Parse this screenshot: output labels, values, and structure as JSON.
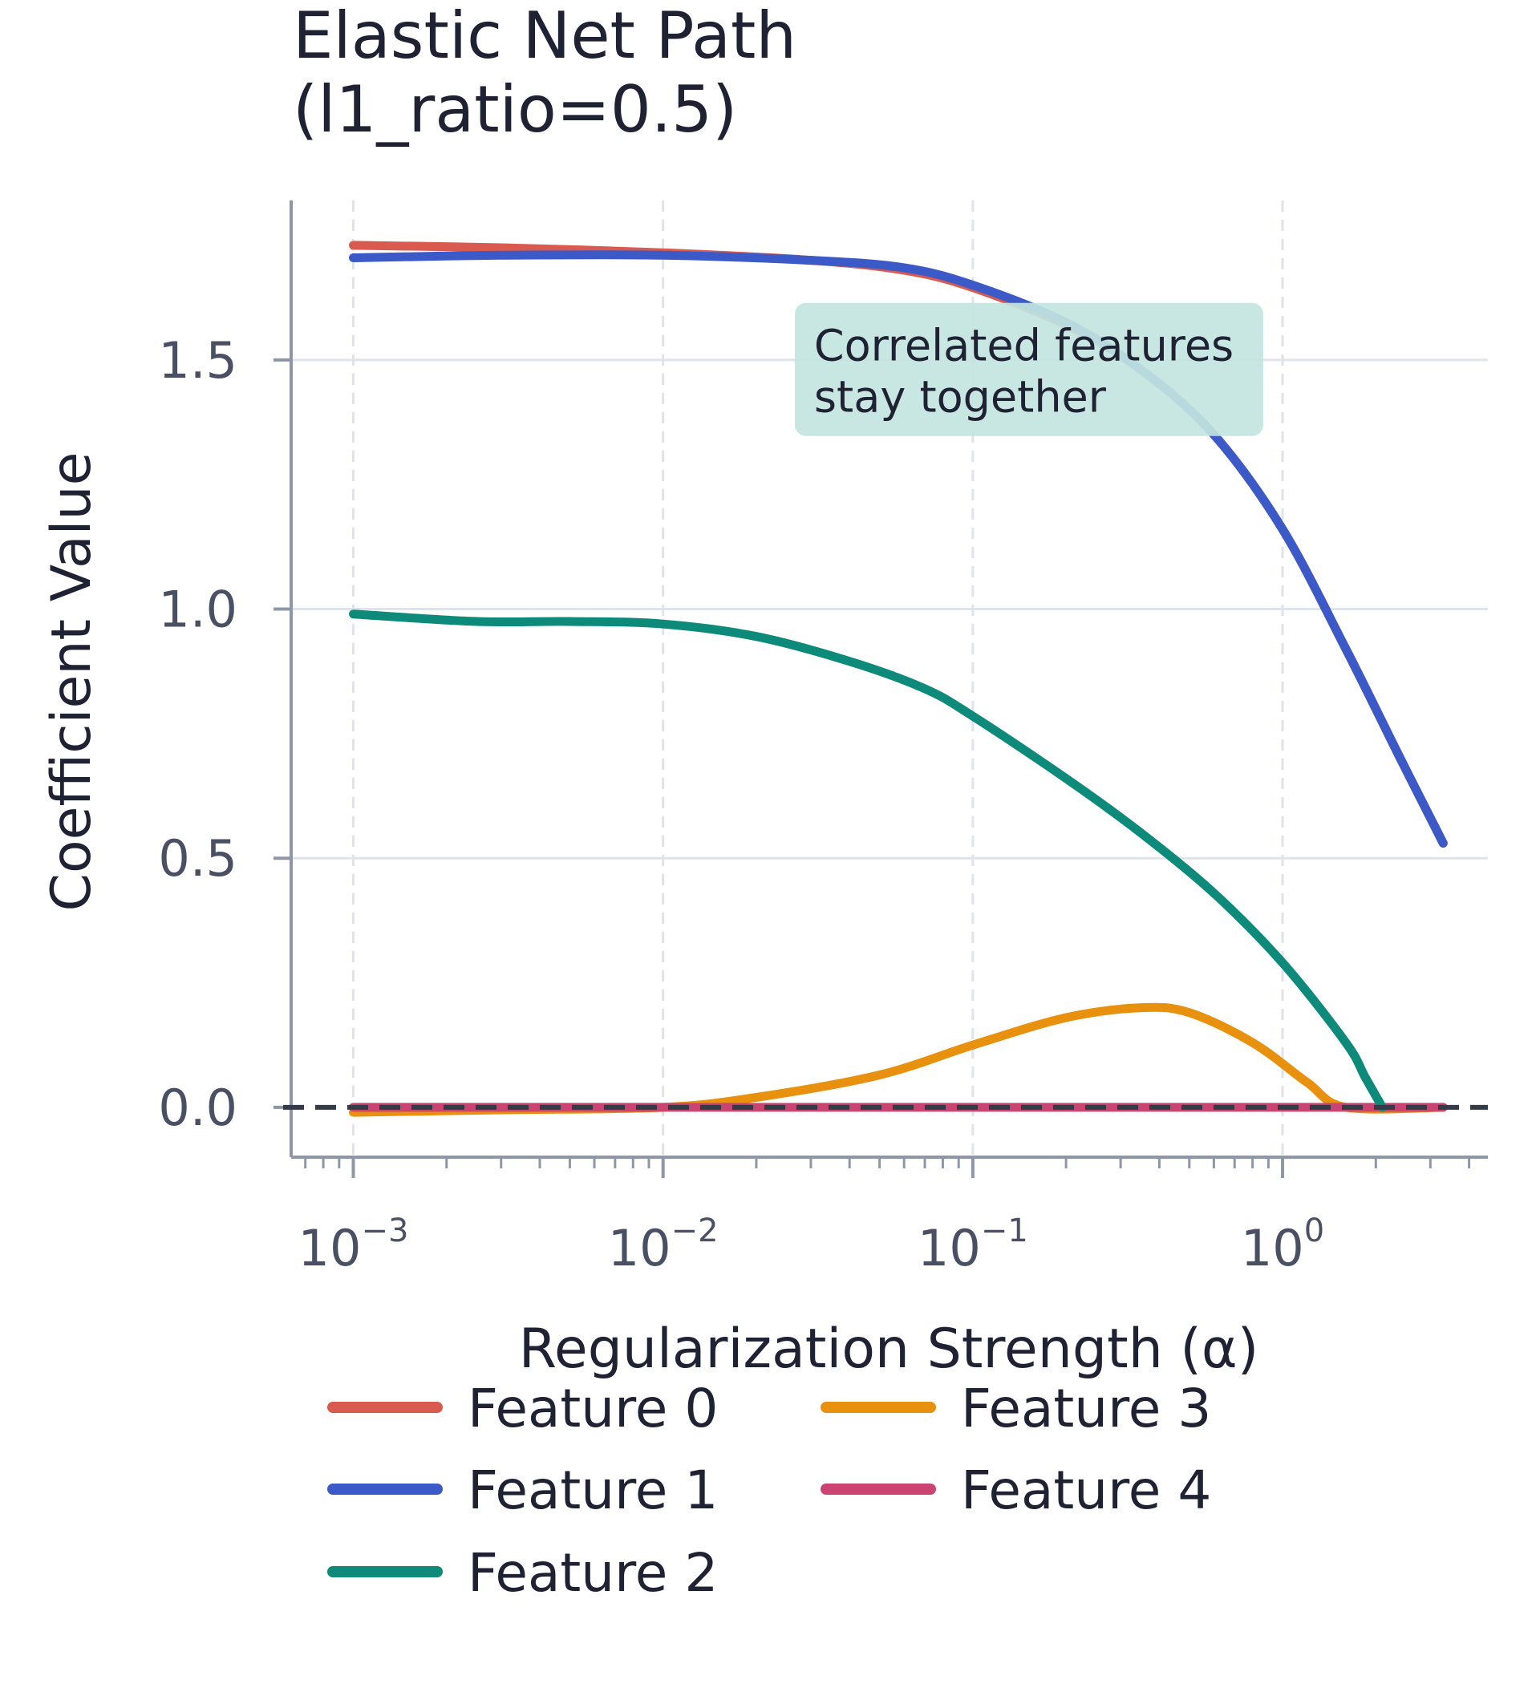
{
  "chart_data": {
    "type": "line",
    "title_lines": [
      "Elastic Net Path",
      "(l1_ratio=0.5)"
    ],
    "xlabel": "Regularization Strength (α)",
    "ylabel": "Coefficient Value",
    "x_scale": "log",
    "xlim": [
      0.00063,
      4.6
    ],
    "ylim": [
      -0.1,
      1.82
    ],
    "x_ticks": [
      {
        "value": 0.001,
        "base": "10",
        "exp": "−3"
      },
      {
        "value": 0.01,
        "base": "10",
        "exp": "−2"
      },
      {
        "value": 0.1,
        "base": "10",
        "exp": "−1"
      },
      {
        "value": 1,
        "base": "10",
        "exp": "0"
      }
    ],
    "y_ticks": [
      {
        "value": 0.0,
        "label": "0.0"
      },
      {
        "value": 0.5,
        "label": "0.5"
      },
      {
        "value": 1.0,
        "label": "1.0"
      },
      {
        "value": 1.5,
        "label": "1.5"
      }
    ],
    "grid": true,
    "zero_line": true,
    "legend_position": "bottom",
    "annotation": {
      "lines": [
        "Correlated features",
        "stay together"
      ],
      "x": 0.03,
      "y": 1.46,
      "color": "#c3e5df"
    },
    "series": [
      {
        "name": "Feature 0",
        "color": "#d95a4e",
        "x": [
          0.001,
          0.003,
          0.01,
          0.03,
          0.06,
          0.1,
          0.2,
          0.35,
          0.6,
          1.0,
          1.6,
          2.4,
          3.3
        ],
        "y": [
          1.73,
          1.725,
          1.715,
          1.7,
          1.68,
          1.645,
          1.57,
          1.48,
          1.35,
          1.16,
          0.92,
          0.7,
          0.53
        ]
      },
      {
        "name": "Feature 1",
        "color": "#3c59c8",
        "x": [
          0.001,
          0.003,
          0.01,
          0.03,
          0.06,
          0.1,
          0.2,
          0.35,
          0.6,
          1.0,
          1.6,
          2.4,
          3.3
        ],
        "y": [
          1.705,
          1.71,
          1.71,
          1.7,
          1.685,
          1.65,
          1.575,
          1.48,
          1.35,
          1.16,
          0.92,
          0.7,
          0.53
        ]
      },
      {
        "name": "Feature 2",
        "color": "#0e8a7b",
        "x": [
          0.001,
          0.0025,
          0.005,
          0.01,
          0.02,
          0.04,
          0.07,
          0.1,
          0.2,
          0.35,
          0.6,
          1.0,
          1.6,
          1.85,
          2.1
        ],
        "y": [
          0.99,
          0.975,
          0.975,
          0.97,
          0.945,
          0.895,
          0.84,
          0.785,
          0.66,
          0.55,
          0.43,
          0.29,
          0.13,
          0.06,
          0.0
        ]
      },
      {
        "name": "Feature 3",
        "color": "#e8910f",
        "x": [
          0.001,
          0.003,
          0.01,
          0.02,
          0.05,
          0.1,
          0.2,
          0.35,
          0.5,
          0.8,
          1.2,
          1.6,
          3.3
        ],
        "y": [
          -0.01,
          -0.005,
          0.0,
          0.02,
          0.065,
          0.125,
          0.18,
          0.2,
          0.19,
          0.13,
          0.05,
          0.0,
          0.0
        ]
      },
      {
        "name": "Feature 4",
        "color": "#cb4371",
        "x": [
          0.001,
          0.01,
          0.1,
          1.0,
          3.3
        ],
        "y": [
          0.0,
          0.0,
          0.0,
          0.0,
          0.0
        ]
      }
    ]
  }
}
